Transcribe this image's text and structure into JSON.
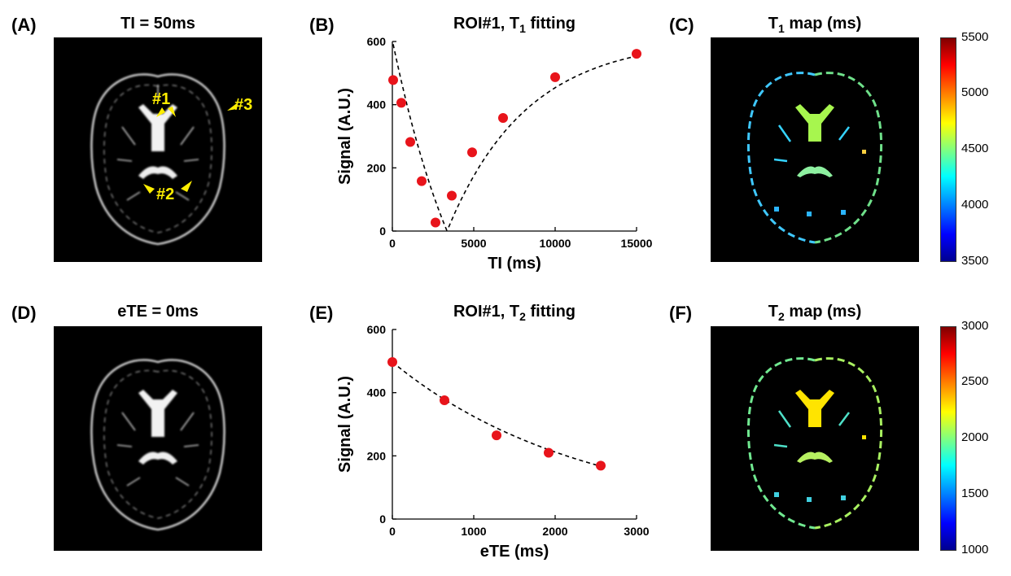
{
  "panels": {
    "A": {
      "label": "(A)",
      "title": "TI = 50ms",
      "annotations": [
        "#1",
        "#2",
        "#3"
      ]
    },
    "B": {
      "label": "(B)",
      "title_main": "ROI#1, T",
      "title_sub": "1",
      "title_tail": " fitting"
    },
    "C": {
      "label": "(C)",
      "title_main": "T",
      "title_sub": "1",
      "title_tail": " map (ms)"
    },
    "D": {
      "label": "(D)",
      "title": "eTE = 0ms"
    },
    "E": {
      "label": "(E)",
      "title_main": "ROI#1, T",
      "title_sub": "2",
      "title_tail": " fitting"
    },
    "F": {
      "label": "(F)",
      "title_main": "T",
      "title_sub": "2",
      "title_tail": " map (ms)"
    }
  },
  "colorbars": {
    "C": {
      "ticks": [
        "5500",
        "5000",
        "4500",
        "4000",
        "3500"
      ],
      "min": 3500,
      "max": 5500
    },
    "F": {
      "ticks": [
        "3000",
        "2500",
        "2000",
        "1500",
        "1000"
      ],
      "min": 1000,
      "max": 3000
    }
  },
  "colors": {
    "points": "#e8141b",
    "annotation": "#ffee00",
    "image_bg": "#000000"
  },
  "chart_data": [
    {
      "type": "scatter",
      "panel": "B",
      "title": "ROI#1, T1 fitting",
      "xlabel": "TI (ms)",
      "ylabel": "Signal (A.U.)",
      "xlim": [
        0,
        15000
      ],
      "ylim": [
        0,
        600
      ],
      "xticks": [
        0,
        5000,
        10000,
        15000
      ],
      "yticks": [
        0,
        200,
        400,
        600
      ],
      "x": [
        50,
        550,
        1100,
        1800,
        2650,
        3650,
        4900,
        6800,
        10000,
        15000
      ],
      "y": [
        478,
        406,
        282,
        158,
        27,
        112,
        249,
        358,
        487,
        561
      ],
      "fit": {
        "style": "dashed",
        "model": "inversion-recovery",
        "S0": 610,
        "T1": 4880,
        "inversion": 1.99
      }
    },
    {
      "type": "scatter",
      "panel": "E",
      "title": "ROI#1, T2 fitting",
      "xlabel": "eTE (ms)",
      "ylabel": "Signal (A.U.)",
      "xlim": [
        0,
        3000
      ],
      "ylim": [
        0,
        600
      ],
      "xticks": [
        0,
        1000,
        2000,
        3000
      ],
      "yticks": [
        0,
        200,
        400,
        600
      ],
      "x": [
        0,
        640,
        1280,
        1920,
        2560
      ],
      "y": [
        497,
        376,
        265,
        210,
        169
      ],
      "fit": {
        "style": "dashed",
        "model": "mono-exponential",
        "S0": 497,
        "T2": 2350
      }
    }
  ]
}
